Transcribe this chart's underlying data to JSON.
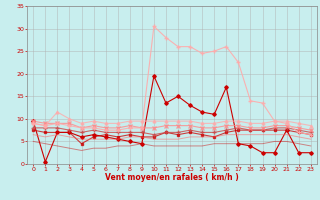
{
  "title": "",
  "xlabel": "Vent moyen/en rafales ( km/h )",
  "ylabel": "",
  "xlim": [
    -0.5,
    23.5
  ],
  "ylim": [
    0,
    35
  ],
  "yticks": [
    0,
    5,
    10,
    15,
    20,
    25,
    30,
    35
  ],
  "xticks": [
    0,
    1,
    2,
    3,
    4,
    5,
    6,
    7,
    8,
    9,
    10,
    11,
    12,
    13,
    14,
    15,
    16,
    17,
    18,
    19,
    20,
    21,
    22,
    23
  ],
  "bg_color": "#c8eeee",
  "grid_color": "#b0b0b0",
  "lines": [
    {
      "x": [
        0,
        1,
        2,
        3,
        4,
        5,
        6,
        7,
        8,
        9,
        10,
        11,
        12,
        13,
        14,
        15,
        16,
        17,
        18,
        19,
        20,
        21,
        22,
        23
      ],
      "y": [
        9.5,
        0.5,
        7,
        7,
        6,
        6.5,
        6,
        5.5,
        5,
        4.5,
        19.5,
        13.5,
        15,
        13,
        11.5,
        11,
        17,
        4.5,
        4,
        2.5,
        2.5,
        7.5,
        2.5,
        2.5
      ],
      "color": "#cc0000",
      "lw": 0.8,
      "marker": "D",
      "ms": 1.8,
      "alpha": 1.0
    },
    {
      "x": [
        0,
        1,
        2,
        3,
        4,
        5,
        6,
        7,
        8,
        9,
        10,
        11,
        12,
        13,
        14,
        15,
        16,
        17,
        18,
        19,
        20,
        21,
        22,
        23
      ],
      "y": [
        7.5,
        7,
        7,
        7,
        4.5,
        6,
        6.5,
        6,
        6.5,
        6,
        6,
        7,
        6.5,
        7,
        6.5,
        6,
        7,
        7.5,
        7.5,
        7.5,
        7.5,
        7.5,
        7,
        6.5
      ],
      "color": "#cc0000",
      "lw": 0.8,
      "marker": "s",
      "ms": 1.5,
      "alpha": 0.75
    },
    {
      "x": [
        0,
        1,
        2,
        3,
        4,
        5,
        6,
        7,
        8,
        9,
        10,
        11,
        12,
        13,
        14,
        15,
        16,
        17,
        18,
        19,
        20,
        21,
        22,
        23
      ],
      "y": [
        8,
        8,
        8,
        7.5,
        7,
        7.5,
        7,
        7,
        7,
        7,
        6.5,
        7,
        7,
        7.5,
        7,
        7,
        7.5,
        8,
        7.5,
        7.5,
        8,
        8,
        7.5,
        7
      ],
      "color": "#cc4444",
      "lw": 0.8,
      "marker": "+",
      "ms": 2.5,
      "alpha": 0.8
    },
    {
      "x": [
        0,
        1,
        2,
        3,
        4,
        5,
        6,
        7,
        8,
        9,
        10,
        11,
        12,
        13,
        14,
        15,
        16,
        17,
        18,
        19,
        20,
        21,
        22,
        23
      ],
      "y": [
        9.5,
        9,
        9,
        9,
        8,
        8.5,
        8,
        8,
        8.5,
        8,
        8,
        8.5,
        8.5,
        8.5,
        8,
        8,
        8.5,
        8.5,
        8,
        8,
        8.5,
        8.5,
        8,
        7.5
      ],
      "color": "#ff8888",
      "lw": 0.8,
      "marker": "x",
      "ms": 2.5,
      "alpha": 0.8
    },
    {
      "x": [
        0,
        1,
        2,
        3,
        4,
        5,
        6,
        7,
        8,
        9,
        10,
        11,
        12,
        13,
        14,
        15,
        16,
        17,
        18,
        19,
        20,
        21,
        22,
        23
      ],
      "y": [
        9,
        8.5,
        11.5,
        10,
        9,
        9.5,
        9,
        9,
        9.5,
        9.5,
        9.5,
        9.5,
        9.5,
        9.5,
        9,
        9,
        9.5,
        9.5,
        9,
        9,
        9.5,
        9.5,
        9,
        8.5
      ],
      "color": "#ffaaaa",
      "lw": 0.8,
      "marker": "^",
      "ms": 2.0,
      "alpha": 0.8
    },
    {
      "x": [
        0,
        1,
        2,
        3,
        4,
        5,
        6,
        7,
        8,
        9,
        10,
        11,
        12,
        13,
        14,
        15,
        16,
        17,
        18,
        19,
        20,
        21,
        22,
        23
      ],
      "y": [
        9,
        8.5,
        9,
        8.5,
        8,
        8,
        7.5,
        7.5,
        8,
        8,
        30.5,
        28,
        26,
        26,
        24.5,
        25,
        26,
        22.5,
        14,
        13.5,
        9.5,
        9,
        7,
        6.5
      ],
      "color": "#ffaaaa",
      "lw": 0.8,
      "marker": "+",
      "ms": 2.5,
      "alpha": 0.9
    },
    {
      "x": [
        0,
        1,
        2,
        3,
        4,
        5,
        6,
        7,
        8,
        9,
        10,
        11,
        12,
        13,
        14,
        15,
        16,
        17,
        18,
        19,
        20,
        21,
        22,
        23
      ],
      "y": [
        5,
        4.5,
        4,
        3.5,
        3,
        3.5,
        3.5,
        4,
        4,
        4.5,
        4,
        4,
        4,
        4,
        4,
        4.5,
        4.5,
        4.5,
        4.5,
        4.5,
        5,
        5,
        4.5,
        4
      ],
      "color": "#cc0000",
      "lw": 0.7,
      "marker": null,
      "ms": 0,
      "alpha": 0.45
    },
    {
      "x": [
        0,
        1,
        2,
        3,
        4,
        5,
        6,
        7,
        8,
        9,
        10,
        11,
        12,
        13,
        14,
        15,
        16,
        17,
        18,
        19,
        20,
        21,
        22,
        23
      ],
      "y": [
        6.5,
        6,
        6.5,
        6,
        5.5,
        5.5,
        5.5,
        5.5,
        6,
        6,
        5.5,
        5.5,
        5.5,
        6,
        6,
        6,
        6.5,
        6.5,
        6.5,
        6.5,
        6.5,
        6.5,
        6,
        5.5
      ],
      "color": "#ff6666",
      "lw": 0.7,
      "marker": null,
      "ms": 0,
      "alpha": 0.55
    }
  ]
}
